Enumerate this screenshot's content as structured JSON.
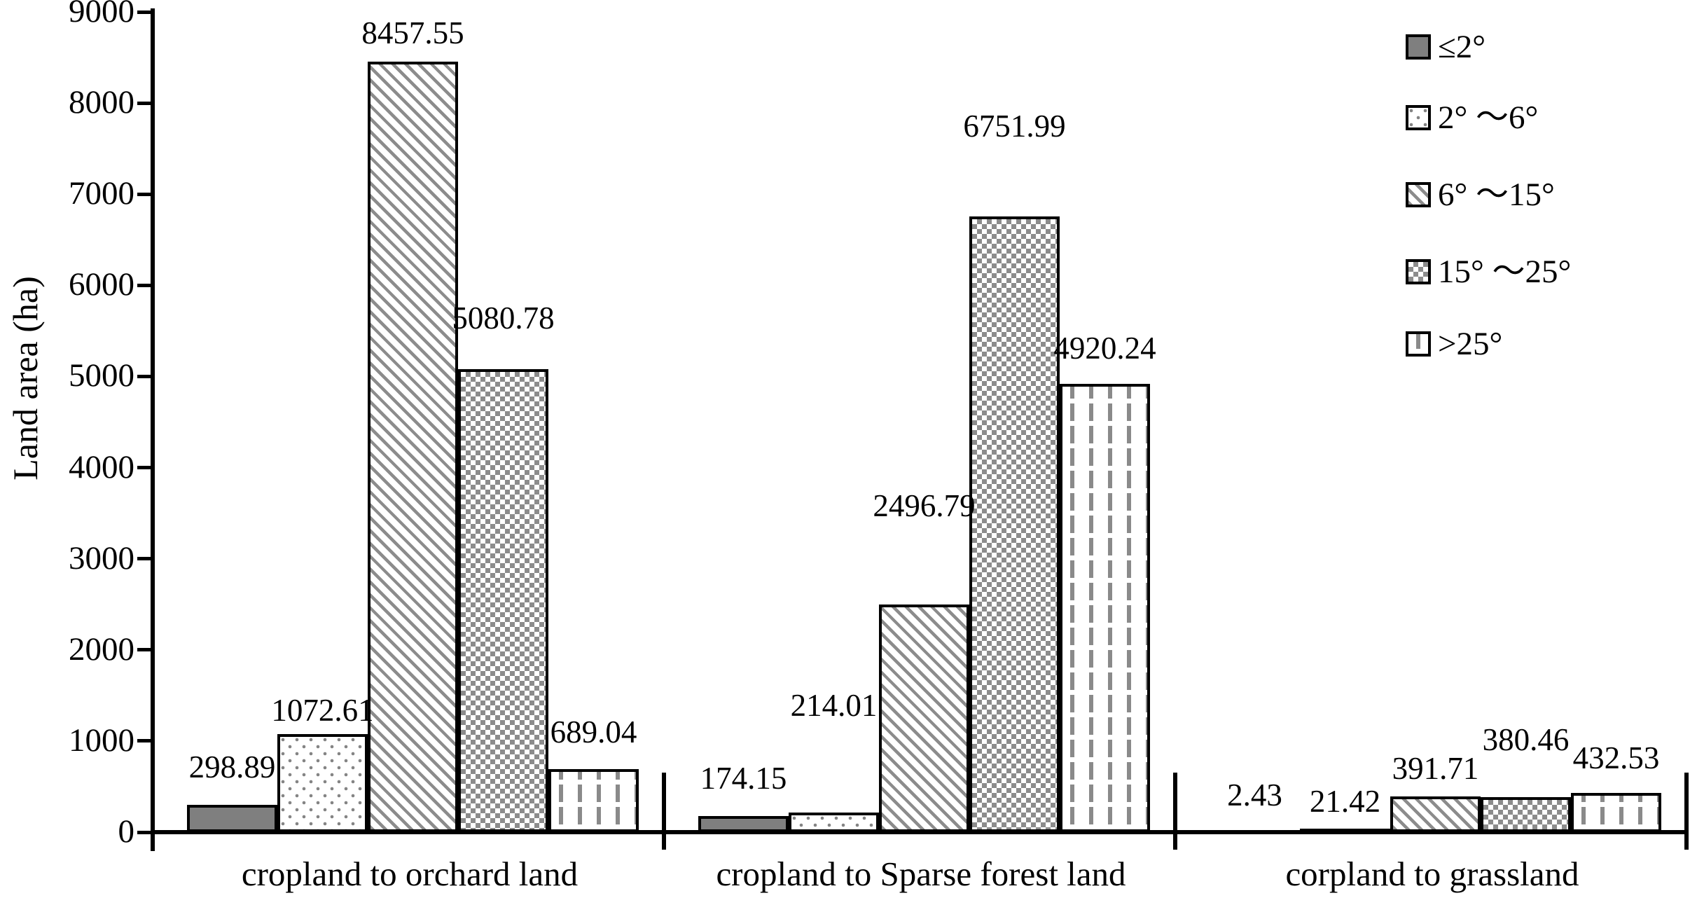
{
  "chart_data": {
    "type": "bar",
    "title": "",
    "ylabel": "Land area (ha)",
    "xlabel": "",
    "ylim": [
      0,
      9000
    ],
    "ytick_interval": 1000,
    "yticks": [
      0,
      1000,
      2000,
      3000,
      4000,
      5000,
      6000,
      7000,
      8000,
      9000
    ],
    "grid": false,
    "legend_position": "top-right",
    "categories": [
      "cropland to orchard land",
      "cropland to Sparse forest land",
      "corpland to grassland"
    ],
    "series": [
      {
        "name": "≤2°",
        "pattern": "solid",
        "color": "#7f7f7f",
        "values": [
          298.89,
          174.15,
          2.43
        ]
      },
      {
        "name": "2° ～6°",
        "pattern": "dots",
        "color": "#848484",
        "values": [
          1072.61,
          214.01,
          21.42
        ]
      },
      {
        "name": "6° ～15°",
        "pattern": "diag",
        "color": "#8c8c8c",
        "values": [
          8457.55,
          2496.79,
          391.71
        ]
      },
      {
        "name": "15° ～25°",
        "pattern": "check",
        "color": "#8c8c8c",
        "values": [
          5080.78,
          6751.99,
          380.46
        ]
      },
      {
        "name": "&gt;25°",
        "pattern": "dash",
        "color": "#8a8a8a",
        "values": [
          689.04,
          4920.24,
          432.53
        ]
      }
    ],
    "value_label_decimals": 2
  }
}
